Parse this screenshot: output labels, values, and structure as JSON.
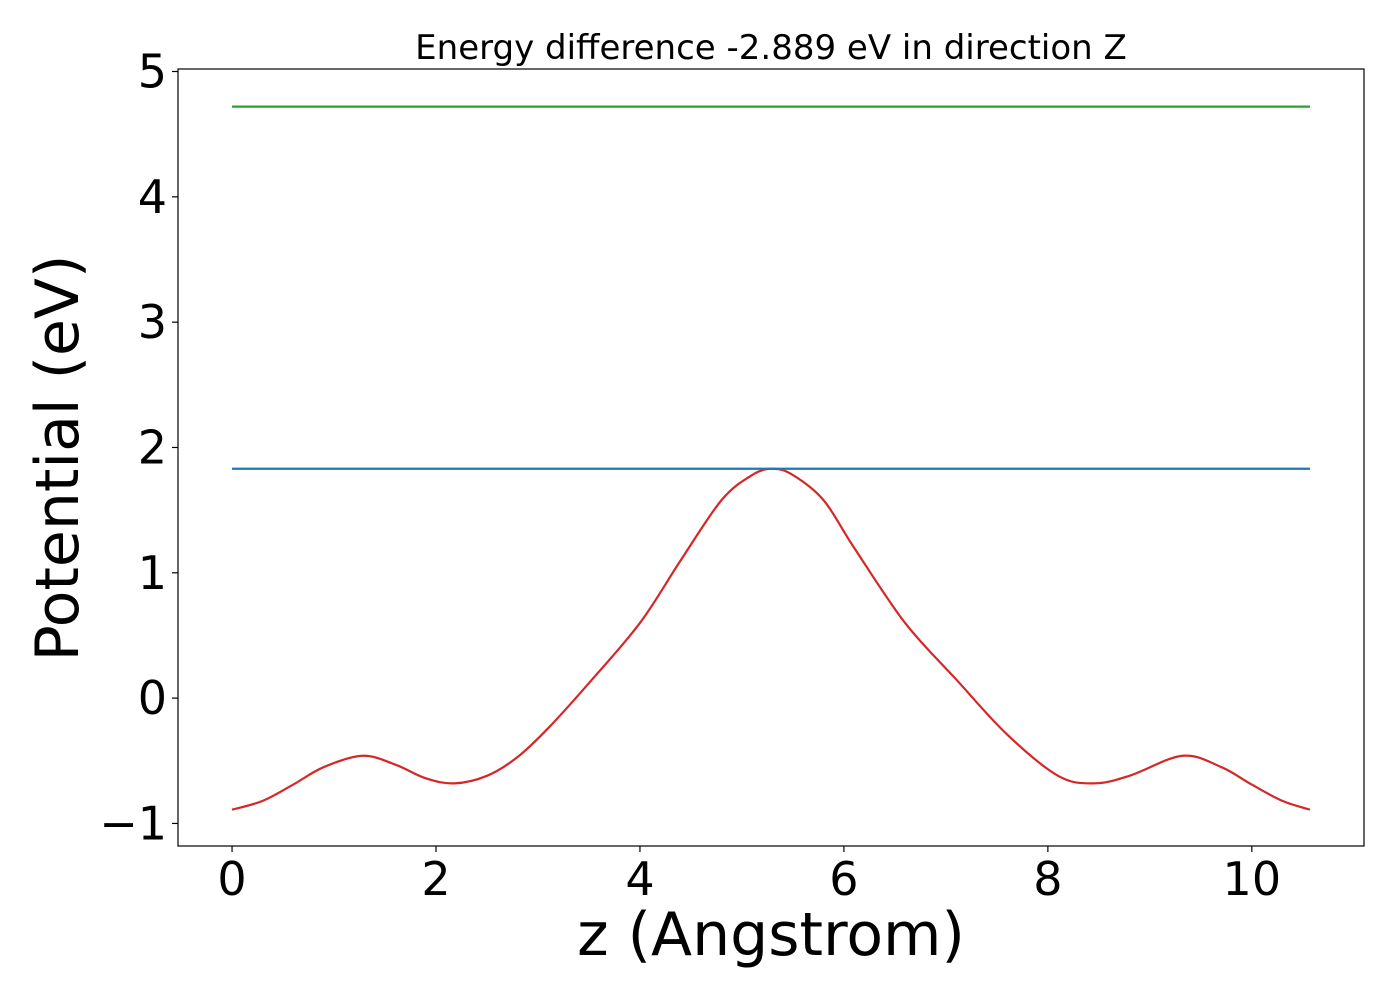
{
  "chart_data": {
    "type": "line",
    "title": "Energy difference -2.889 eV in direction Z",
    "xlabel": "z (Angstrom)",
    "ylabel": "Potential (eV)",
    "xlim": [
      -0.53,
      11.1
    ],
    "ylim": [
      -1.18,
      5.02
    ],
    "xticks": [
      0,
      2,
      4,
      6,
      8,
      10
    ],
    "yticks": [
      -1,
      0,
      1,
      2,
      3,
      4,
      5
    ],
    "xtick_labels": [
      "0",
      "2",
      "4",
      "6",
      "8",
      "10"
    ],
    "ytick_labels": [
      "−1",
      "0",
      "1",
      "2",
      "3",
      "4",
      "5"
    ],
    "grid": false,
    "series": [
      {
        "color": "#d62728",
        "x": [
          0,
          0.3,
          0.6,
          0.9,
          1.28,
          1.6,
          1.9,
          2.18,
          2.5,
          2.8,
          3.1,
          3.5,
          4.0,
          4.4,
          4.8,
          5.1,
          5.3,
          5.5,
          5.8,
          6.1,
          6.6,
          7.1,
          7.6,
          8.1,
          8.45,
          8.8,
          9.32,
          9.7,
          10.0,
          10.3,
          10.57
        ],
        "y": [
          -0.89,
          -0.82,
          -0.69,
          -0.55,
          -0.46,
          -0.53,
          -0.64,
          -0.68,
          -0.62,
          -0.47,
          -0.24,
          0.12,
          0.6,
          1.1,
          1.58,
          1.78,
          1.83,
          1.78,
          1.58,
          1.2,
          0.6,
          0.15,
          -0.29,
          -0.62,
          -0.68,
          -0.62,
          -0.46,
          -0.55,
          -0.69,
          -0.82,
          -0.89
        ]
      },
      {
        "color": "#1f77b4",
        "x": [
          0,
          10.57
        ],
        "y": [
          1.83,
          1.83
        ]
      },
      {
        "color": "#2ca02c",
        "x": [
          0,
          10.57
        ],
        "y": [
          4.72,
          4.72
        ]
      }
    ]
  }
}
